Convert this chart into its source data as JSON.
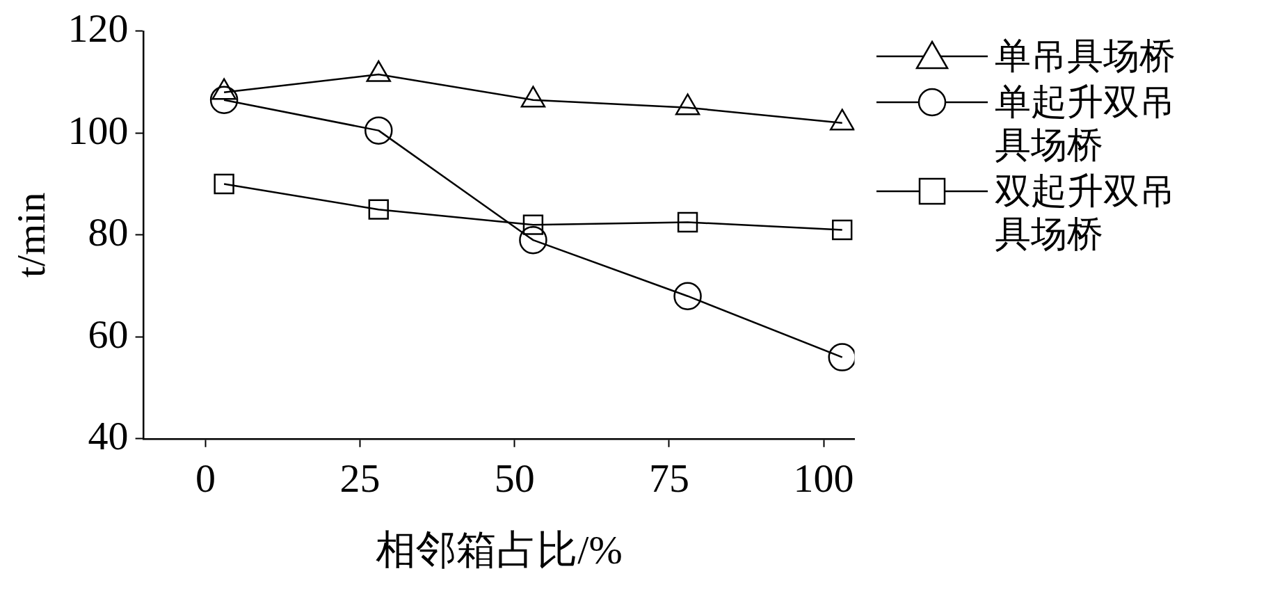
{
  "chart_data": {
    "type": "line",
    "xlabel": "相邻箱占比/%",
    "ylabel": "t/min",
    "xlim": [
      -10,
      105
    ],
    "xticks": [
      0,
      25,
      50,
      75,
      100
    ],
    "ylim": [
      40,
      120
    ],
    "yticks": [
      40,
      60,
      80,
      100,
      120
    ],
    "grid": false,
    "legend": "right",
    "line_style": "solid",
    "x": [
      3,
      28,
      53,
      78,
      103
    ],
    "series": [
      {
        "name": "单吊具场桥",
        "color": "#000000",
        "marker": "triangle",
        "values": [
          108,
          111.5,
          106.5,
          105,
          102
        ]
      },
      {
        "name": "单起升双吊具场桥",
        "color": "#000000",
        "marker": "circle",
        "values": [
          106.5,
          100.5,
          79,
          68,
          56
        ]
      },
      {
        "name": "双起升双吊具场桥",
        "color": "#000000",
        "marker": "square",
        "values": [
          90,
          85,
          82,
          82.5,
          81
        ]
      }
    ]
  }
}
